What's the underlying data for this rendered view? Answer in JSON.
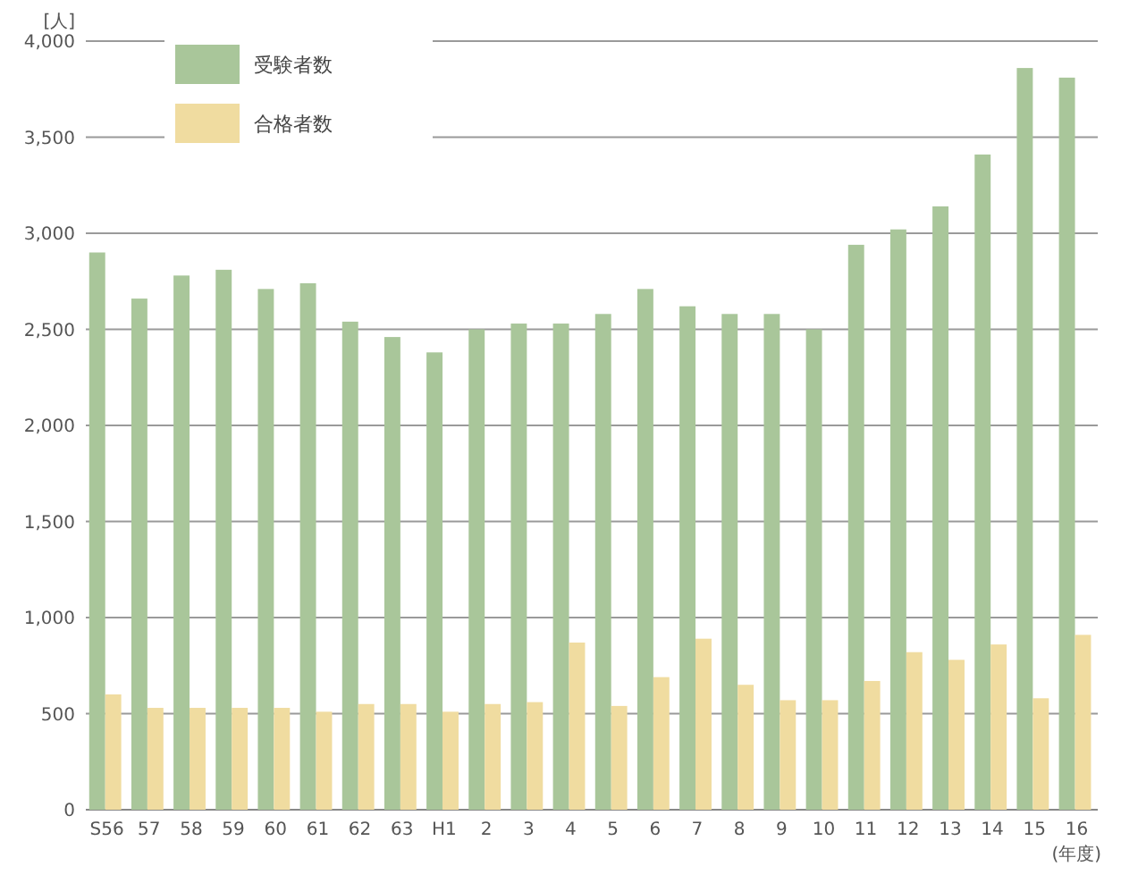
{
  "chart_data": {
    "type": "bar",
    "ylabel": "[人]",
    "xlabel": "(年度)",
    "categories": [
      "S56",
      "57",
      "58",
      "59",
      "60",
      "61",
      "62",
      "63",
      "H1",
      "2",
      "3",
      "4",
      "5",
      "6",
      "7",
      "8",
      "9",
      "10",
      "11",
      "12",
      "13",
      "14",
      "15",
      "16"
    ],
    "series": [
      {
        "name": "受験者数",
        "color": "#a9c69a",
        "values": [
          2900,
          2660,
          2780,
          2810,
          2710,
          2740,
          2540,
          2460,
          2380,
          2500,
          2530,
          2530,
          2580,
          2710,
          2620,
          2580,
          2580,
          2500,
          2940,
          3020,
          3140,
          3410,
          3860,
          3810
        ]
      },
      {
        "name": "合格者数",
        "color": "#f0dca0",
        "values": [
          600,
          530,
          530,
          530,
          530,
          510,
          550,
          550,
          510,
          550,
          560,
          870,
          540,
          690,
          890,
          650,
          570,
          570,
          670,
          820,
          780,
          860,
          580,
          910
        ]
      }
    ],
    "ylim": [
      0,
      4000
    ],
    "yticks": [
      0,
      {
        "value": 500,
        "label": "500"
      },
      {
        "value": 1000,
        "label": "1,000"
      },
      {
        "value": 1500,
        "label": "1,500"
      },
      {
        "value": 2000,
        "label": "2,000"
      },
      {
        "value": 2500,
        "label": "2,500"
      },
      {
        "value": 3000,
        "label": "3,000"
      },
      {
        "value": 3500,
        "label": "3,500"
      },
      {
        "value": 4000,
        "label": "4,000"
      }
    ],
    "grid": "y",
    "legend": "top left"
  }
}
